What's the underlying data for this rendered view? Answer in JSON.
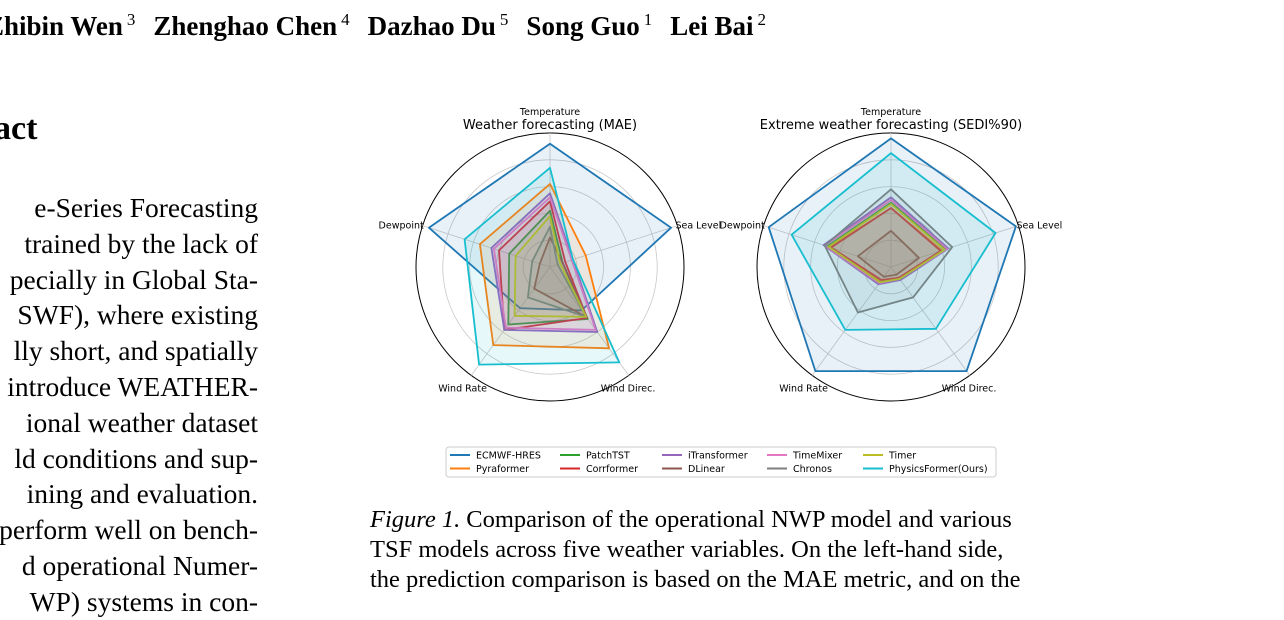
{
  "authors": [
    {
      "name": "Zhibin Wen",
      "aff": "3"
    },
    {
      "name": "Zhenghao Chen",
      "aff": "4"
    },
    {
      "name": "Dazhao Du",
      "aff": "5"
    },
    {
      "name": "Song Guo",
      "aff": "1"
    },
    {
      "name": "Lei Bai",
      "aff": "2"
    }
  ],
  "section_title": "act",
  "abstract_lines": [
    "e-Series Forecasting",
    "trained by the lack of",
    "pecially in Global Sta-",
    "SWF), where existing",
    "lly short, and spatially",
    "introduce WEATHER-",
    "ional weather dataset",
    "ld conditions and sup-",
    "ining and evaluation.",
    "perform well on bench-",
    "d operational Numer-",
    "WP) systems in con-"
  ],
  "figure": {
    "caption_label": "Figure 1.",
    "caption_lines": [
      "Comparison of the operational NWP model and various",
      "TSF models across five weather variables. On the left-hand side,",
      "the prediction comparison is based on the MAE metric, and on the"
    ]
  },
  "chart_data": [
    {
      "type": "radar",
      "title": "Weather forecasting (MAE)",
      "axes": [
        "Temperature",
        "Sea Level",
        "Wind Direc.",
        "Wind Rate",
        "Dewpoint"
      ],
      "range": [
        0,
        1
      ],
      "grid": true,
      "series": [
        {
          "name": "ECMWF-HRES",
          "color": "#1f77b4",
          "values": [
            0.92,
            0.95,
            0.4,
            0.38,
            0.95
          ]
        },
        {
          "name": "Pyraformer",
          "color": "#ff7f0e",
          "values": [
            0.62,
            0.28,
            0.75,
            0.72,
            0.55
          ]
        },
        {
          "name": "PatchTST",
          "color": "#2ca02c",
          "values": [
            0.42,
            0.1,
            0.48,
            0.53,
            0.32
          ]
        },
        {
          "name": "Corrformer",
          "color": "#d62728",
          "values": [
            0.49,
            0.12,
            0.47,
            0.58,
            0.4
          ]
        },
        {
          "name": "iTransformer",
          "color": "#9467bd",
          "values": [
            0.55,
            0.18,
            0.6,
            0.58,
            0.46
          ]
        },
        {
          "name": "DLinear",
          "color": "#8c564b",
          "values": [
            0.22,
            0.1,
            0.46,
            0.2,
            0.08
          ]
        },
        {
          "name": "TimeMixer",
          "color": "#e377c2",
          "values": [
            0.52,
            0.17,
            0.58,
            0.56,
            0.44
          ]
        },
        {
          "name": "Chronos",
          "color": "#7f7f7f",
          "values": [
            0.3,
            0.06,
            0.46,
            0.28,
            0.14
          ]
        },
        {
          "name": "Timer",
          "color": "#bcbd22",
          "values": [
            0.38,
            0.08,
            0.46,
            0.45,
            0.27
          ]
        },
        {
          "name": "PhysicsFormer(Ours)",
          "color": "#17becf",
          "values": [
            0.74,
            0.18,
            0.88,
            0.9,
            0.67
          ]
        }
      ]
    },
    {
      "type": "radar",
      "title": "Extreme weather forecasting (SEDI%90)",
      "axes": [
        "Temperature",
        "Sea Level",
        "Wind Direc.",
        "Wind Rate",
        "Dewpoint"
      ],
      "range": [
        0,
        1
      ],
      "grid": true,
      "series": [
        {
          "name": "ECMWF-HRES",
          "color": "#1f77b4",
          "values": [
            0.96,
            0.98,
            0.96,
            0.96,
            0.96
          ]
        },
        {
          "name": "Pyraformer",
          "color": "#ff7f0e",
          "values": [
            0.44,
            0.4,
            0.1,
            0.13,
            0.48
          ]
        },
        {
          "name": "PatchTST",
          "color": "#2ca02c",
          "values": [
            0.48,
            0.43,
            0.11,
            0.14,
            0.5
          ]
        },
        {
          "name": "Corrformer",
          "color": "#d62728",
          "values": [
            0.44,
            0.39,
            0.1,
            0.12,
            0.47
          ]
        },
        {
          "name": "iTransformer",
          "color": "#9467bd",
          "values": [
            0.52,
            0.45,
            0.12,
            0.16,
            0.53
          ]
        },
        {
          "name": "DLinear",
          "color": "#8c564b",
          "values": [
            0.27,
            0.22,
            0.07,
            0.09,
            0.26
          ]
        },
        {
          "name": "TimeMixer",
          "color": "#e377c2",
          "values": [
            0.5,
            0.44,
            0.11,
            0.15,
            0.52
          ]
        },
        {
          "name": "Chronos",
          "color": "#7f7f7f",
          "values": [
            0.58,
            0.48,
            0.28,
            0.42,
            0.52
          ]
        },
        {
          "name": "Timer",
          "color": "#bcbd22",
          "values": [
            0.47,
            0.42,
            0.11,
            0.14,
            0.49
          ]
        },
        {
          "name": "PhysicsFormer(Ours)",
          "color": "#17becf",
          "values": [
            0.85,
            0.82,
            0.57,
            0.58,
            0.78
          ]
        }
      ]
    }
  ]
}
